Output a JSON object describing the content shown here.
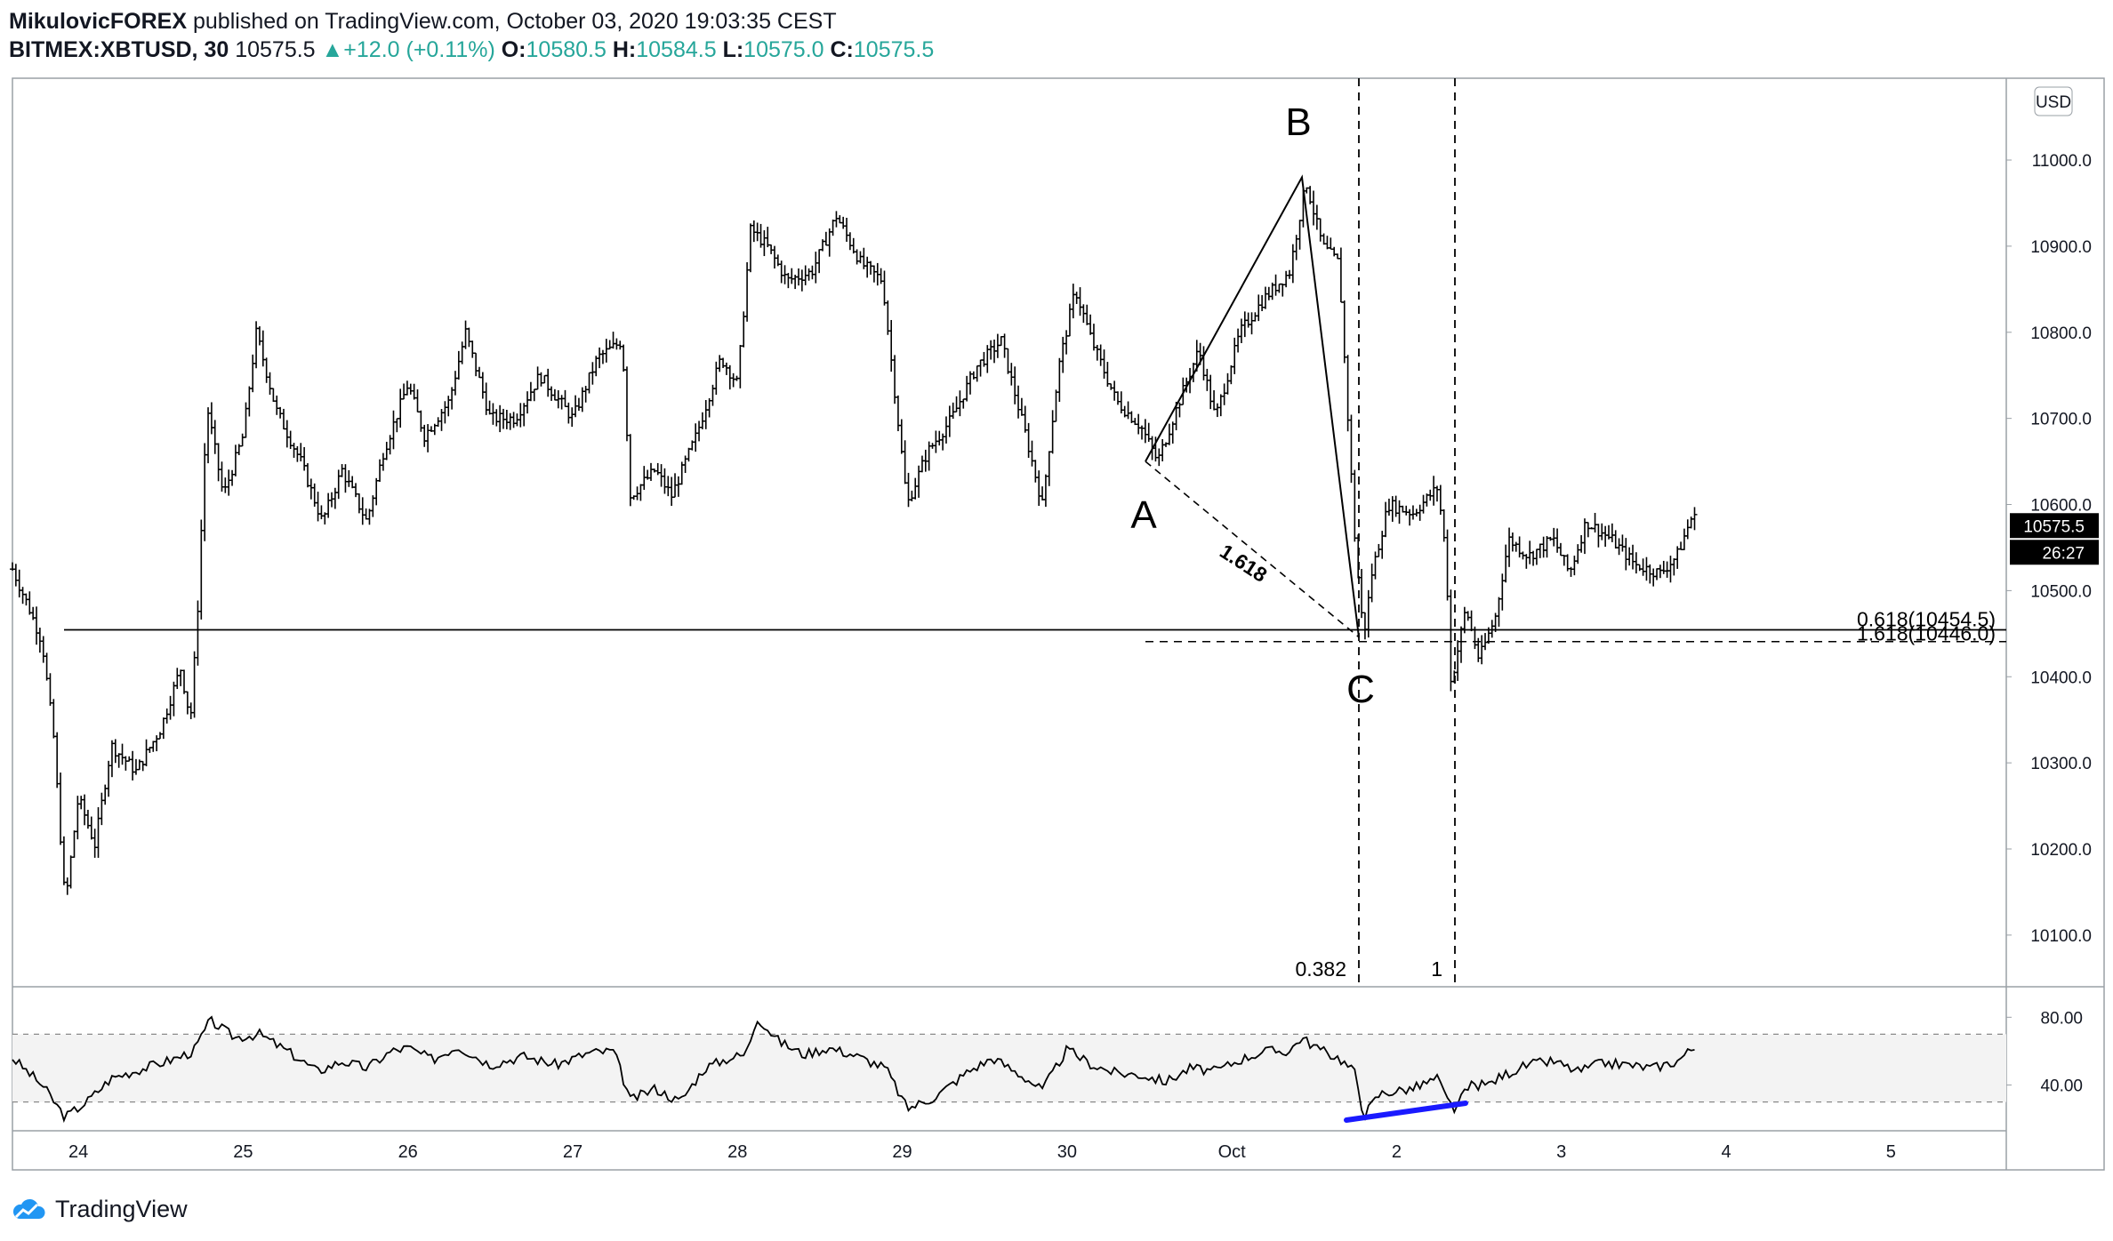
{
  "header": {
    "author": "MikulovicFOREX",
    "published_text": "published on TradingView.com, October 03, 2020 19:03:35 CEST",
    "symbol": "BITMEX:XBTUSD, 30",
    "last": "10575.5",
    "change": "+12.0 (+0.11%)",
    "o_label": "O:",
    "o": "10580.5",
    "h_label": "H:",
    "h": "10584.5",
    "l_label": "L:",
    "l": "10575.0",
    "c_label": "C:",
    "c": "10575.5"
  },
  "currency_badge": "USD",
  "last_price_tag": "10575.5",
  "countdown_tag": "26:27",
  "footer_brand": "TradingView",
  "colors": {
    "up": "#26a69a",
    "rsi_divergence": "#1a1aff",
    "price_tag_bg": "#000000"
  },
  "annotations": {
    "wave_labels": [
      "A",
      "B",
      "C"
    ],
    "ratio_ab_c": "1.618",
    "fib_label_1": "0.618(10454.5)",
    "fib_label_2": "1.618(10446.0)",
    "time_fib_1": "0.382",
    "time_fib_2": "1"
  },
  "chart_data": [
    {
      "type": "bar",
      "subtype": "ohlc",
      "title": "",
      "y_axis_ticks": [
        "11000.0",
        "10900.0",
        "10800.0",
        "10700.0",
        "10600.0",
        "10500.0",
        "10400.0",
        "10300.0",
        "10200.0",
        "10100.0"
      ],
      "x_axis_ticks": [
        "24",
        "25",
        "26",
        "27",
        "28",
        "29",
        "30",
        "Oct",
        "2",
        "3",
        "4",
        "5"
      ],
      "ylim": [
        10040,
        11095
      ],
      "x_range_days": [
        23.6,
        5.7
      ],
      "key_prices": {
        "A": 10650,
        "B": 10980,
        "C": 10446,
        "support": 10454.5,
        "support_1618": 10446.0,
        "low": 10130,
        "high_sep28": 10945
      },
      "path": [
        [
          23.6,
          10525
        ],
        [
          23.7,
          10480
        ],
        [
          23.78,
          10440
        ],
        [
          23.85,
          10330
        ],
        [
          23.92,
          10135
        ],
        [
          24.0,
          10260
        ],
        [
          24.1,
          10205
        ],
        [
          24.2,
          10320
        ],
        [
          24.35,
          10290
        ],
        [
          24.5,
          10340
        ],
        [
          24.62,
          10410
        ],
        [
          24.68,
          10350
        ],
        [
          24.72,
          10460
        ],
        [
          24.78,
          10715
        ],
        [
          24.88,
          10610
        ],
        [
          25.0,
          10680
        ],
        [
          25.08,
          10800
        ],
        [
          25.2,
          10710
        ],
        [
          25.35,
          10650
        ],
        [
          25.48,
          10580
        ],
        [
          25.6,
          10640
        ],
        [
          25.75,
          10580
        ],
        [
          25.85,
          10660
        ],
        [
          26.0,
          10740
        ],
        [
          26.1,
          10680
        ],
        [
          26.25,
          10720
        ],
        [
          26.35,
          10800
        ],
        [
          26.5,
          10700
        ],
        [
          26.65,
          10700
        ],
        [
          26.8,
          10750
        ],
        [
          27.0,
          10700
        ],
        [
          27.15,
          10770
        ],
        [
          27.3,
          10790
        ],
        [
          27.35,
          10610
        ],
        [
          27.5,
          10640
        ],
        [
          27.6,
          10610
        ],
        [
          27.75,
          10680
        ],
        [
          27.9,
          10770
        ],
        [
          28.0,
          10740
        ],
        [
          28.08,
          10920
        ],
        [
          28.18,
          10900
        ],
        [
          28.3,
          10860
        ],
        [
          28.45,
          10870
        ],
        [
          28.6,
          10935
        ],
        [
          28.75,
          10880
        ],
        [
          28.88,
          10860
        ],
        [
          29.03,
          10600
        ],
        [
          29.15,
          10660
        ],
        [
          29.3,
          10700
        ],
        [
          29.45,
          10760
        ],
        [
          29.6,
          10790
        ],
        [
          29.75,
          10680
        ],
        [
          29.85,
          10600
        ],
        [
          29.95,
          10760
        ],
        [
          30.05,
          10850
        ],
        [
          30.15,
          10790
        ],
        [
          30.3,
          10720
        ],
        [
          30.45,
          10690
        ],
        [
          30.55,
          10650
        ],
        [
          30.7,
          10730
        ],
        [
          30.8,
          10780
        ],
        [
          30.9,
          10700
        ],
        [
          31.05,
          10800
        ],
        [
          31.2,
          10840
        ],
        [
          31.35,
          10870
        ],
        [
          31.45,
          10975
        ],
        [
          31.55,
          10900
        ],
        [
          31.65,
          10880
        ],
        [
          31.75,
          10550
        ],
        [
          31.8,
          10446
        ],
        [
          31.85,
          10520
        ],
        [
          31.95,
          10600
        ],
        [
          32.1,
          10590
        ],
        [
          32.25,
          10620
        ],
        [
          32.3,
          10540
        ],
        [
          32.33,
          10390
        ],
        [
          32.42,
          10480
        ],
        [
          32.5,
          10420
        ],
        [
          32.6,
          10470
        ],
        [
          32.68,
          10560
        ],
        [
          32.8,
          10540
        ],
        [
          32.95,
          10560
        ],
        [
          33.05,
          10520
        ],
        [
          33.15,
          10580
        ],
        [
          33.3,
          10560
        ],
        [
          33.45,
          10530
        ],
        [
          33.6,
          10520
        ],
        [
          33.7,
          10540
        ],
        [
          33.8,
          10590
        ],
        [
          33.82,
          10575
        ]
      ]
    },
    {
      "type": "line",
      "title": "",
      "y_axis_ticks": [
        "80.00",
        "40.00"
      ],
      "ylim": [
        13,
        98
      ],
      "bands": [
        70,
        30
      ],
      "path": [
        [
          23.6,
          56
        ],
        [
          23.78,
          40
        ],
        [
          23.92,
          21
        ],
        [
          24.05,
          30
        ],
        [
          24.2,
          44
        ],
        [
          24.4,
          50
        ],
        [
          24.6,
          56
        ],
        [
          24.7,
          60
        ],
        [
          24.8,
          78
        ],
        [
          24.95,
          68
        ],
        [
          25.1,
          70
        ],
        [
          25.3,
          58
        ],
        [
          25.45,
          48
        ],
        [
          25.6,
          54
        ],
        [
          25.75,
          50
        ],
        [
          25.9,
          60
        ],
        [
          26.0,
          62
        ],
        [
          26.15,
          55
        ],
        [
          26.3,
          63
        ],
        [
          26.5,
          52
        ],
        [
          26.7,
          57
        ],
        [
          26.9,
          52
        ],
        [
          27.1,
          59
        ],
        [
          27.25,
          60
        ],
        [
          27.35,
          31
        ],
        [
          27.5,
          38
        ],
        [
          27.65,
          30
        ],
        [
          27.8,
          50
        ],
        [
          27.95,
          56
        ],
        [
          28.05,
          58
        ],
        [
          28.12,
          80
        ],
        [
          28.25,
          66
        ],
        [
          28.4,
          58
        ],
        [
          28.55,
          62
        ],
        [
          28.7,
          58
        ],
        [
          28.9,
          50
        ],
        [
          29.03,
          26
        ],
        [
          29.2,
          33
        ],
        [
          29.4,
          48
        ],
        [
          29.55,
          56
        ],
        [
          29.75,
          44
        ],
        [
          29.85,
          37
        ],
        [
          30.0,
          61
        ],
        [
          30.15,
          52
        ],
        [
          30.3,
          47
        ],
        [
          30.45,
          46
        ],
        [
          30.6,
          42
        ],
        [
          30.75,
          50
        ],
        [
          30.9,
          48
        ],
        [
          31.05,
          55
        ],
        [
          31.2,
          60
        ],
        [
          31.35,
          60
        ],
        [
          31.42,
          68
        ],
        [
          31.55,
          60
        ],
        [
          31.65,
          56
        ],
        [
          31.75,
          47
        ],
        [
          31.8,
          22
        ],
        [
          31.9,
          35
        ],
        [
          32.1,
          38
        ],
        [
          32.25,
          44
        ],
        [
          32.3,
          32
        ],
        [
          32.35,
          26
        ],
        [
          32.45,
          40
        ],
        [
          32.55,
          40
        ],
        [
          32.65,
          46
        ],
        [
          32.8,
          52
        ],
        [
          32.95,
          54
        ],
        [
          33.1,
          48
        ],
        [
          33.25,
          53
        ],
        [
          33.4,
          52
        ],
        [
          33.55,
          50
        ],
        [
          33.7,
          54
        ],
        [
          33.8,
          62
        ]
      ]
    }
  ]
}
